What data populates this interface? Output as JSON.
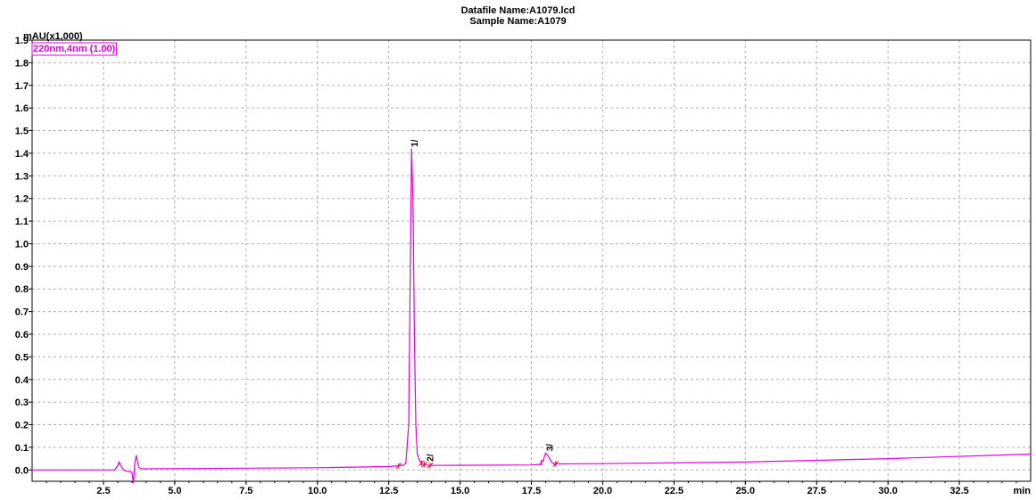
{
  "header": {
    "datafile_line": "Datafile Name:A1079.lcd",
    "sample_line": "Sample Name:A1079"
  },
  "chart_data": {
    "type": "line",
    "ylabel": "mAU(x1,000)",
    "xlabel": "min",
    "xlim": [
      0,
      35.0
    ],
    "ylim": [
      -0.05,
      1.9
    ],
    "grid": true,
    "x_ticks": [
      2.5,
      5.0,
      7.5,
      10.0,
      12.5,
      15.0,
      17.5,
      20.0,
      22.5,
      25.0,
      27.5,
      30.0,
      32.5
    ],
    "x_tick_labels": [
      "2.5",
      "5.0",
      "7.5",
      "10.0",
      "12.5",
      "15.0",
      "17.5",
      "20.0",
      "22.5",
      "25.0",
      "27.5",
      "30.0",
      "32.5"
    ],
    "y_ticks": [
      0.0,
      0.1,
      0.2,
      0.3,
      0.4,
      0.5,
      0.6,
      0.7,
      0.8,
      0.9,
      1.0,
      1.1,
      1.2,
      1.3,
      1.4,
      1.5,
      1.6,
      1.7,
      1.8,
      1.9
    ],
    "y_tick_labels": [
      "0.0",
      "0.1",
      "0.2",
      "0.3",
      "0.4",
      "0.5",
      "0.6",
      "0.7",
      "0.8",
      "0.9",
      "1.0",
      "1.1",
      "1.2",
      "1.3",
      "1.4",
      "1.5",
      "1.6",
      "1.7",
      "1.8",
      "1.9"
    ],
    "legend": "top-left",
    "series": [
      {
        "name": "220nm,4nm (1.00)",
        "color": "#e000e0",
        "x": [
          0.0,
          2.9,
          3.0,
          3.05,
          3.1,
          3.2,
          3.3,
          3.5,
          3.55,
          3.6,
          3.65,
          3.7,
          3.75,
          3.85,
          4.0,
          10.0,
          12.5,
          13.0,
          13.1,
          13.2,
          13.25,
          13.3,
          13.35,
          13.4,
          13.45,
          13.5,
          13.6,
          13.7,
          13.9,
          14.0,
          17.5,
          17.8,
          17.9,
          18.0,
          18.1,
          18.2,
          18.3,
          18.5,
          20.0,
          25.0,
          30.0,
          35.0
        ],
        "y": [
          0.0,
          0.0,
          0.02,
          0.035,
          0.02,
          0.0,
          -0.005,
          -0.01,
          -0.06,
          0.03,
          0.065,
          0.03,
          0.01,
          0.005,
          0.005,
          0.01,
          0.015,
          0.02,
          0.03,
          0.2,
          0.8,
          1.42,
          1.2,
          0.6,
          0.2,
          0.07,
          0.035,
          0.025,
          0.02,
          0.02,
          0.022,
          0.025,
          0.04,
          0.075,
          0.06,
          0.035,
          0.027,
          0.027,
          0.028,
          0.035,
          0.05,
          0.07
        ]
      }
    ],
    "peaks": [
      {
        "label": "1",
        "x": 13.35,
        "y": 1.42
      },
      {
        "label": "2",
        "x": 13.9,
        "y": 0.03
      },
      {
        "label": "3",
        "x": 18.1,
        "y": 0.075
      }
    ],
    "baseline_markers": [
      12.85,
      13.65,
      13.75,
      13.95,
      17.85,
      18.35
    ]
  }
}
